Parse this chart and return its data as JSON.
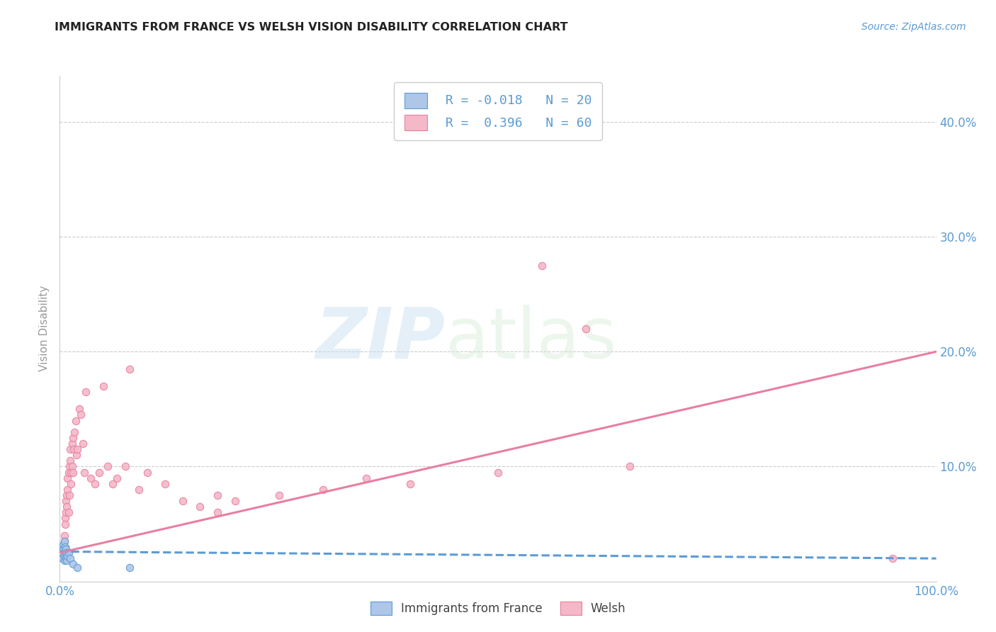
{
  "title": "IMMIGRANTS FROM FRANCE VS WELSH VISION DISABILITY CORRELATION CHART",
  "source": "Source: ZipAtlas.com",
  "ylabel": "Vision Disability",
  "xlim": [
    0,
    1.0
  ],
  "ylim": [
    0,
    0.44
  ],
  "xticks": [
    0.0,
    1.0
  ],
  "xticklabels": [
    "0.0%",
    "100.0%"
  ],
  "yticks": [
    0.0,
    0.1,
    0.2,
    0.3,
    0.4
  ],
  "yticklabels": [
    "",
    "10.0%",
    "20.0%",
    "30.0%",
    "40.0%"
  ],
  "background_color": "#ffffff",
  "grid_color": "#cccccc",
  "title_color": "#222222",
  "axis_color": "#5b9bd5",
  "watermark_zip": "ZIP",
  "watermark_atlas": "atlas",
  "legend_R_blue": "-0.018",
  "legend_N_blue": "20",
  "legend_R_pink": "0.396",
  "legend_N_pink": "60",
  "blue_scatter_x": [
    0.002,
    0.003,
    0.003,
    0.004,
    0.004,
    0.005,
    0.005,
    0.005,
    0.006,
    0.006,
    0.007,
    0.007,
    0.008,
    0.008,
    0.009,
    0.01,
    0.012,
    0.015,
    0.02,
    0.08
  ],
  "blue_scatter_y": [
    0.025,
    0.03,
    0.02,
    0.032,
    0.028,
    0.035,
    0.022,
    0.018,
    0.03,
    0.025,
    0.028,
    0.02,
    0.025,
    0.018,
    0.022,
    0.025,
    0.02,
    0.015,
    0.012,
    0.012
  ],
  "pink_scatter_x": [
    0.003,
    0.004,
    0.005,
    0.005,
    0.006,
    0.006,
    0.007,
    0.007,
    0.008,
    0.008,
    0.009,
    0.009,
    0.01,
    0.01,
    0.011,
    0.011,
    0.012,
    0.012,
    0.013,
    0.013,
    0.014,
    0.014,
    0.015,
    0.015,
    0.016,
    0.017,
    0.018,
    0.019,
    0.02,
    0.022,
    0.024,
    0.026,
    0.028,
    0.03,
    0.035,
    0.04,
    0.045,
    0.05,
    0.055,
    0.06,
    0.065,
    0.075,
    0.08,
    0.09,
    0.1,
    0.12,
    0.14,
    0.16,
    0.18,
    0.2,
    0.25,
    0.3,
    0.35,
    0.4,
    0.5,
    0.55,
    0.6,
    0.65,
    0.95,
    0.18
  ],
  "pink_scatter_y": [
    0.03,
    0.025,
    0.04,
    0.035,
    0.055,
    0.05,
    0.06,
    0.07,
    0.065,
    0.075,
    0.08,
    0.09,
    0.095,
    0.06,
    0.1,
    0.075,
    0.105,
    0.115,
    0.095,
    0.085,
    0.12,
    0.1,
    0.125,
    0.095,
    0.115,
    0.13,
    0.14,
    0.11,
    0.115,
    0.15,
    0.145,
    0.12,
    0.095,
    0.165,
    0.09,
    0.085,
    0.095,
    0.17,
    0.1,
    0.085,
    0.09,
    0.1,
    0.185,
    0.08,
    0.095,
    0.085,
    0.07,
    0.065,
    0.06,
    0.07,
    0.075,
    0.08,
    0.09,
    0.085,
    0.095,
    0.275,
    0.22,
    0.1,
    0.02,
    0.075
  ],
  "blue_line_x": [
    0.0,
    1.0
  ],
  "blue_line_y": [
    0.026,
    0.02
  ],
  "pink_line_x": [
    0.0,
    1.0
  ],
  "pink_line_y": [
    0.025,
    0.2
  ],
  "blue_color": "#aec6e8",
  "blue_edge": "#5b9bd5",
  "pink_color": "#f4b8c8",
  "pink_edge": "#e87fa0",
  "blue_line_color": "#5b9bd5",
  "pink_line_color": "#e87fa0",
  "marker_size": 55
}
